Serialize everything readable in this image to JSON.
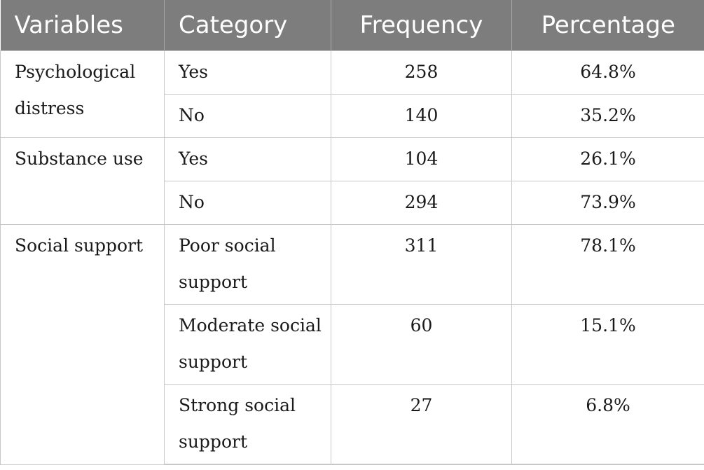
{
  "table": {
    "headers": [
      "Variables",
      "Category",
      "Frequency",
      "Percentage"
    ],
    "groups": [
      {
        "variable": "Psychological distress",
        "rows": [
          {
            "category": "Yes",
            "frequency": "258",
            "percentage": "64.8%"
          },
          {
            "category": "No",
            "frequency": "140",
            "percentage": "35.2%"
          }
        ]
      },
      {
        "variable": "Substance use",
        "rows": [
          {
            "category": "Yes",
            "frequency": "104",
            "percentage": "26.1%"
          },
          {
            "category": "No",
            "frequency": "294",
            "percentage": "73.9%"
          }
        ]
      },
      {
        "variable": "Social support",
        "rows": [
          {
            "category": "Poor social support",
            "frequency": "311",
            "percentage": "78.1%"
          },
          {
            "category": "Moderate social support",
            "frequency": "60",
            "percentage": "15.1%"
          },
          {
            "category": "Strong social support",
            "frequency": "27",
            "percentage": "6.8%"
          }
        ]
      }
    ]
  }
}
